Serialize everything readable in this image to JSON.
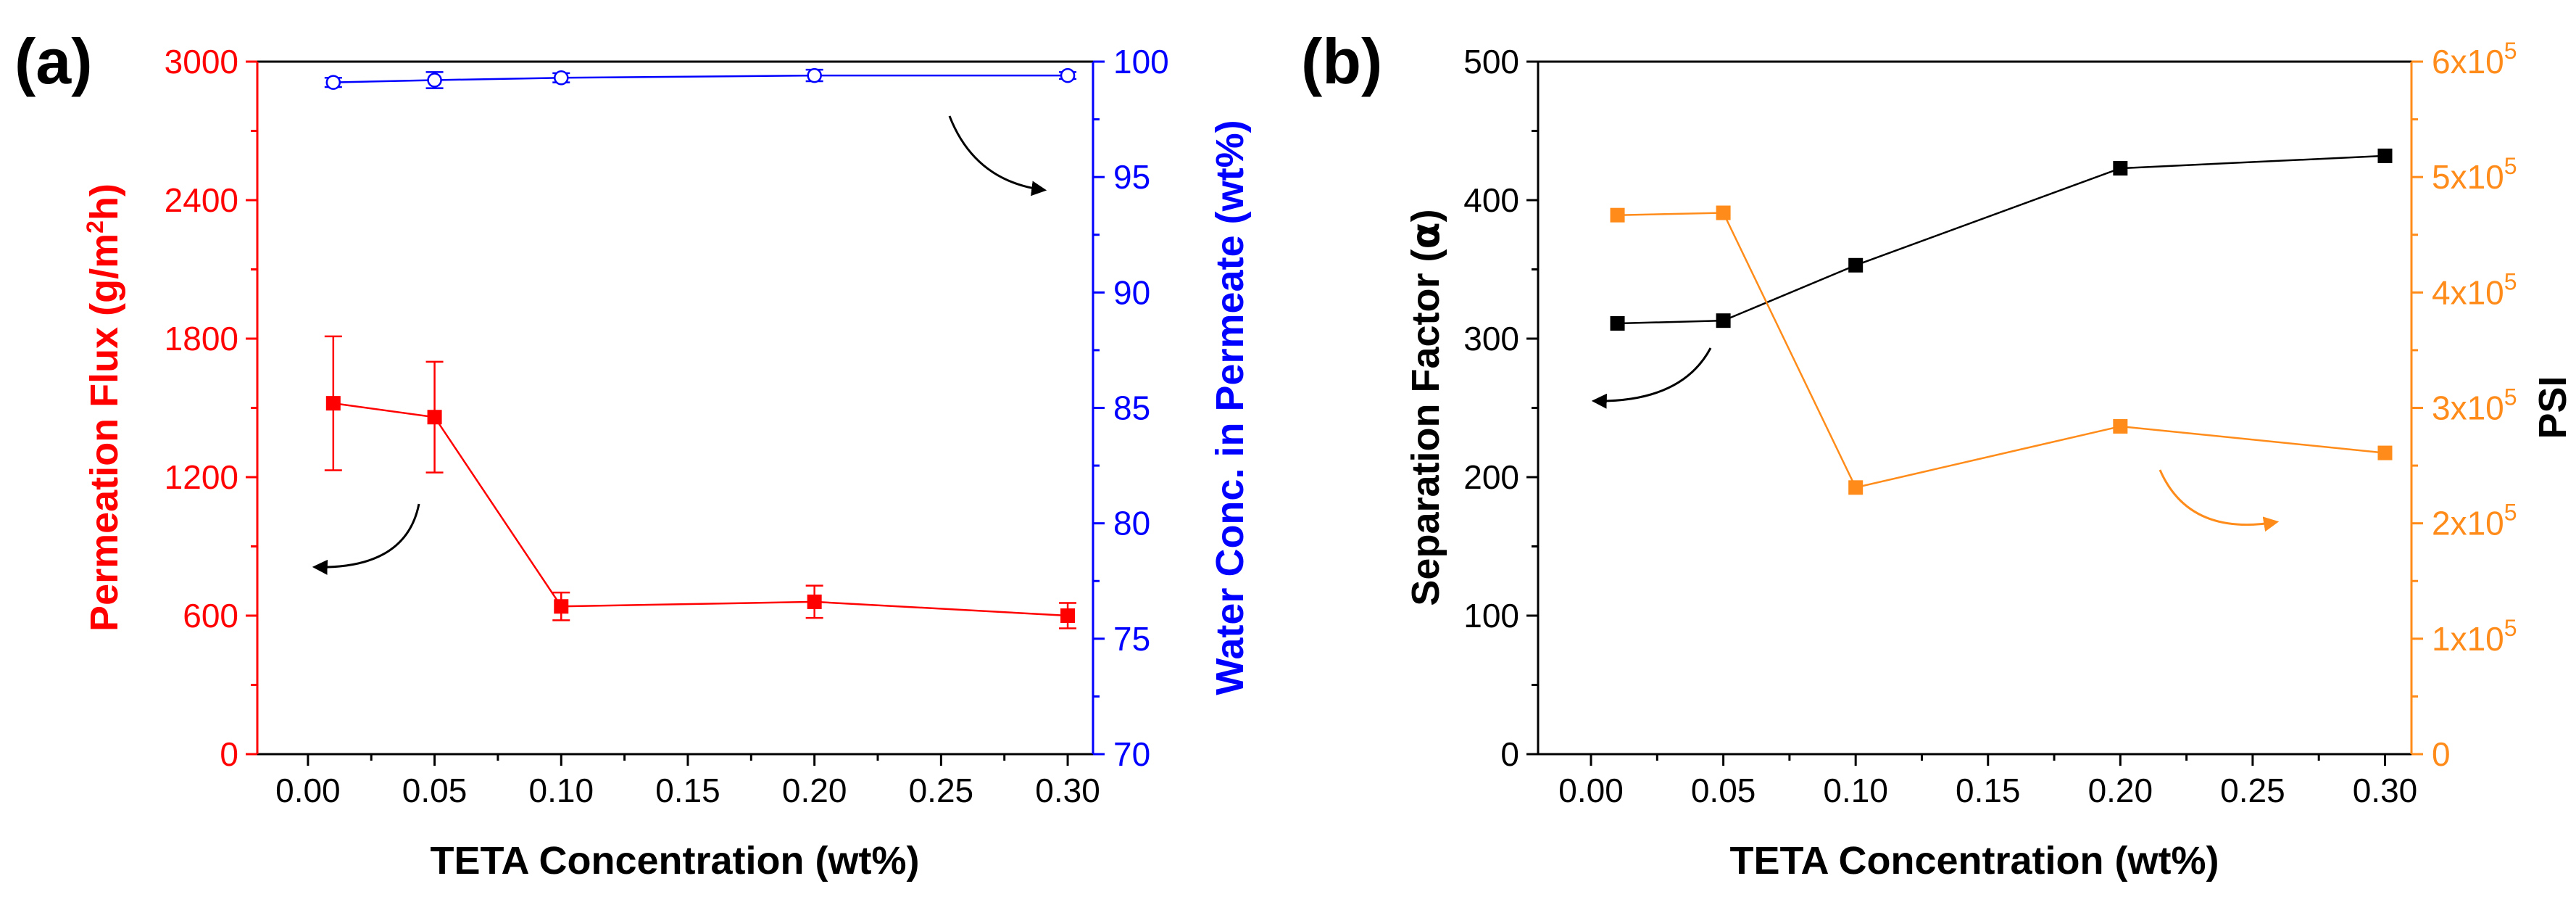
{
  "chart_data": [
    {
      "type": "line",
      "panel_label": "(a)",
      "xlabel": "TETA Concentration (wt%)",
      "xlim": [
        -0.02,
        0.31
      ],
      "x_ticks": [
        "0.00",
        "0.05",
        "0.10",
        "0.15",
        "0.20",
        "0.25",
        "0.30"
      ],
      "x": [
        0.01,
        0.05,
        0.1,
        0.2,
        0.3
      ],
      "left_axis": {
        "label_main": "Permeation Flux (g/m",
        "label_sup": "2",
        "label_end": "h)",
        "color": "#ff0000",
        "ylim": [
          0,
          3000
        ],
        "ticks": [
          "0",
          "600",
          "1200",
          "1800",
          "2400",
          "3000"
        ]
      },
      "right_axis": {
        "label": "Water Conc. in Permeate (wt%)",
        "color": "#0000ff",
        "ylim": [
          70,
          100
        ],
        "ticks": [
          "70",
          "75",
          "80",
          "85",
          "90",
          "95",
          "100"
        ]
      },
      "series": [
        {
          "name": "Permeation Flux",
          "axis": "left",
          "color": "#ff0000",
          "marker": "filled-square",
          "values": [
            1520,
            1460,
            640,
            660,
            600
          ],
          "errors": [
            290,
            240,
            60,
            70,
            55
          ]
        },
        {
          "name": "Water Conc. in Permeate",
          "axis": "right",
          "color": "#0000ff",
          "marker": "open-circle",
          "values": [
            99.1,
            99.2,
            99.3,
            99.4,
            99.4
          ],
          "errors": [
            0.2,
            0.35,
            0.2,
            0.25,
            0.15
          ]
        }
      ]
    },
    {
      "type": "line",
      "panel_label": "(b)",
      "xlabel": "TETA Concentration (wt%)",
      "xlim": [
        -0.02,
        0.31
      ],
      "x_ticks": [
        "0.00",
        "0.05",
        "0.10",
        "0.15",
        "0.20",
        "0.25",
        "0.30"
      ],
      "x": [
        0.01,
        0.05,
        0.1,
        0.2,
        0.3
      ],
      "left_axis": {
        "label_main": "Separation Factor (",
        "label_greek": "α",
        "label_end": ")",
        "color": "#000000",
        "ylim": [
          0,
          500
        ],
        "ticks": [
          "0",
          "100",
          "200",
          "300",
          "400",
          "500"
        ]
      },
      "right_axis": {
        "label": "PSI",
        "color": "#ff8c1a",
        "ylim": [
          0,
          600000
        ],
        "ticks": [
          {
            "base": "0",
            "exp": ""
          },
          {
            "base": "1x10",
            "exp": "5"
          },
          {
            "base": "2x10",
            "exp": "5"
          },
          {
            "base": "3x10",
            "exp": "5"
          },
          {
            "base": "4x10",
            "exp": "5"
          },
          {
            "base": "5x10",
            "exp": "5"
          },
          {
            "base": "6x10",
            "exp": "5"
          }
        ]
      },
      "series": [
        {
          "name": "Separation Factor",
          "axis": "left",
          "color": "#000000",
          "marker": "filled-square",
          "values": [
            311,
            313,
            353,
            423,
            432
          ]
        },
        {
          "name": "PSI",
          "axis": "right",
          "color": "#ff8c1a",
          "marker": "filled-square",
          "values": [
            467000,
            469000,
            231000,
            284000,
            261000
          ]
        }
      ]
    }
  ]
}
